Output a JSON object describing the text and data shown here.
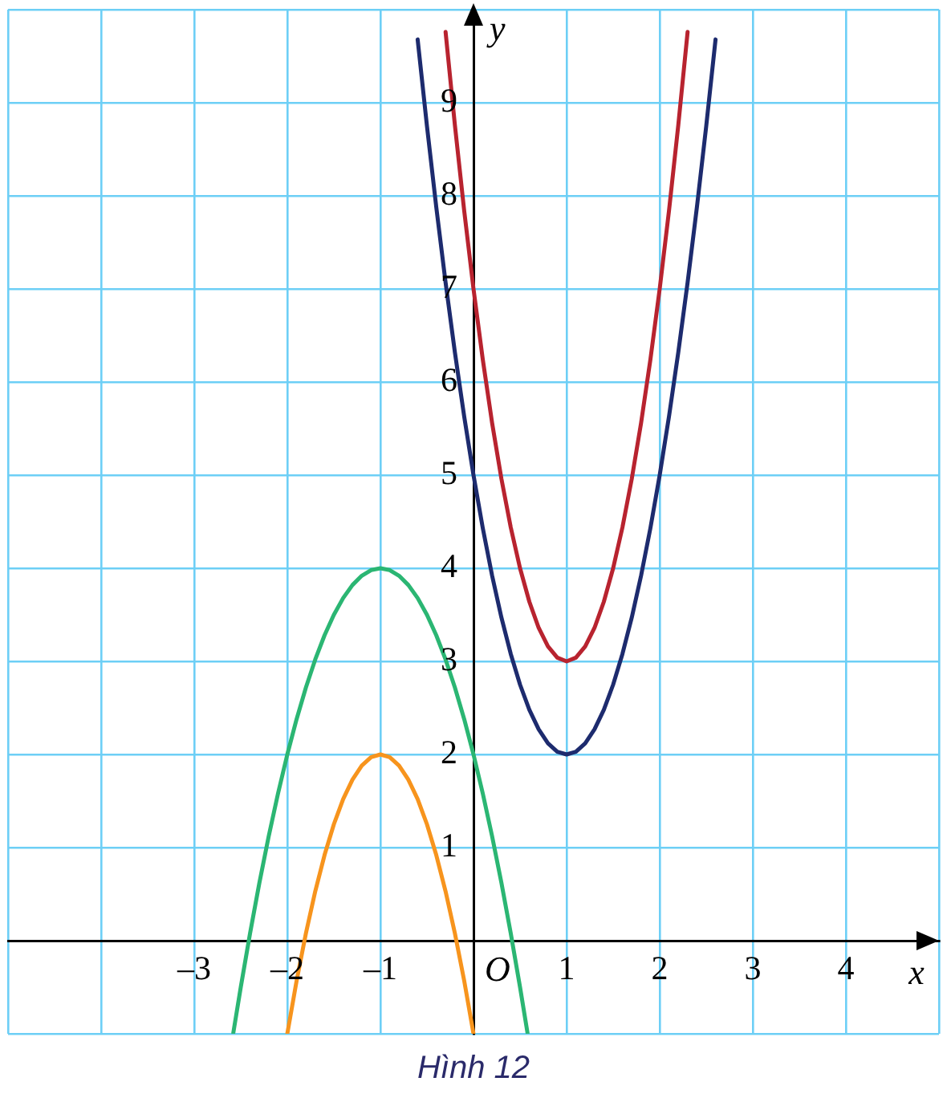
{
  "chart_data": {
    "type": "line",
    "xlabel": "x",
    "ylabel": "y",
    "xlim": [
      -5,
      5
    ],
    "ylim": [
      -1,
      10
    ],
    "xticks": [
      {
        "value": -5,
        "label": null
      },
      {
        "value": -4,
        "label": null
      },
      {
        "value": -3,
        "label": "–3"
      },
      {
        "value": -2,
        "label": "–2"
      },
      {
        "value": -1,
        "label": "–1"
      },
      {
        "value": 0,
        "label": null
      },
      1,
      2,
      3,
      4,
      {
        "value": 5,
        "label": null
      }
    ],
    "yticks": [
      {
        "value": -1,
        "label": null
      },
      {
        "value": 0,
        "label": null
      },
      1,
      2,
      3,
      4,
      5,
      6,
      7,
      8,
      9,
      {
        "value": 10,
        "label": null
      }
    ],
    "grid": true,
    "legend": false,
    "marker": "none",
    "line_style": "solid",
    "series": [
      {
        "color": "#1d2b6e",
        "x": [
          -0.6,
          -0.5,
          -0.4,
          -0.3,
          -0.2,
          -0.1,
          0,
          0.1,
          0.2,
          0.3,
          0.4,
          0.5,
          0.6,
          0.7,
          0.8,
          0.9,
          1,
          1.1,
          1.2,
          1.3,
          1.4,
          1.5,
          1.6,
          1.7,
          1.8,
          1.9,
          2,
          2.1,
          2.2,
          2.3,
          2.4,
          2.5,
          2.6
        ],
        "values": [
          9.68,
          8.75,
          7.88,
          7.07,
          6.32,
          5.63,
          5,
          4.43,
          3.92,
          3.47,
          3.08,
          2.75,
          2.48,
          2.27,
          2.12,
          2.03,
          2,
          2.03,
          2.12,
          2.27,
          2.48,
          2.75,
          3.08,
          3.47,
          3.92,
          4.43,
          5,
          5.63,
          6.32,
          7.07,
          7.88,
          8.75,
          9.68
        ]
      },
      {
        "color": "#b8232f",
        "x": [
          -0.3,
          -0.2,
          -0.1,
          0,
          0.1,
          0.2,
          0.3,
          0.4,
          0.5,
          0.6,
          0.7,
          0.8,
          0.9,
          1,
          1.1,
          1.2,
          1.3,
          1.4,
          1.5,
          1.6,
          1.7,
          1.8,
          1.9,
          2,
          2.1,
          2.2,
          2.3
        ],
        "values": [
          9.76,
          8.76,
          7.84,
          7,
          6.24,
          5.56,
          4.96,
          4.44,
          4,
          3.64,
          3.36,
          3.16,
          3.04,
          3,
          3.04,
          3.16,
          3.36,
          3.64,
          4,
          4.44,
          4.96,
          5.56,
          6.24,
          7,
          7.84,
          8.76,
          9.76
        ]
      },
      {
        "color": "#2bb673",
        "x": [
          -2.58,
          -2.5,
          -2.4,
          -2.3,
          -2.2,
          -2.1,
          -2,
          -1.9,
          -1.8,
          -1.7,
          -1.6,
          -1.5,
          -1.4,
          -1.3,
          -1.2,
          -1.1,
          -1,
          -0.9,
          -0.8,
          -0.7,
          -0.6,
          -0.5,
          -0.4,
          -0.3,
          -0.2,
          -0.1,
          0,
          0.1,
          0.2,
          0.3,
          0.4,
          0.5,
          0.58
        ],
        "values": [
          -0.99,
          -0.5,
          0.08,
          0.62,
          1.12,
          1.58,
          2,
          2.38,
          2.72,
          3.02,
          3.28,
          3.5,
          3.68,
          3.82,
          3.92,
          3.98,
          4,
          3.98,
          3.92,
          3.82,
          3.68,
          3.5,
          3.28,
          3.02,
          2.72,
          2.38,
          2,
          1.58,
          1.12,
          0.62,
          0.08,
          -0.5,
          -0.99
        ]
      },
      {
        "color": "#f7941d",
        "x": [
          -2,
          -1.9,
          -1.8,
          -1.7,
          -1.6,
          -1.5,
          -1.4,
          -1.3,
          -1.2,
          -1.1,
          -1,
          -0.9,
          -0.8,
          -0.7,
          -0.6,
          -0.5,
          -0.4,
          -0.3,
          -0.2,
          -0.1,
          0
        ],
        "values": [
          -1,
          -0.43,
          0.08,
          0.53,
          0.92,
          1.25,
          1.52,
          1.73,
          1.88,
          1.97,
          2,
          1.97,
          1.88,
          1.73,
          1.52,
          1.25,
          0.92,
          0.53,
          0.08,
          -0.43,
          -1
        ]
      }
    ],
    "annotations": [
      "O",
      "Hình 12"
    ]
  }
}
